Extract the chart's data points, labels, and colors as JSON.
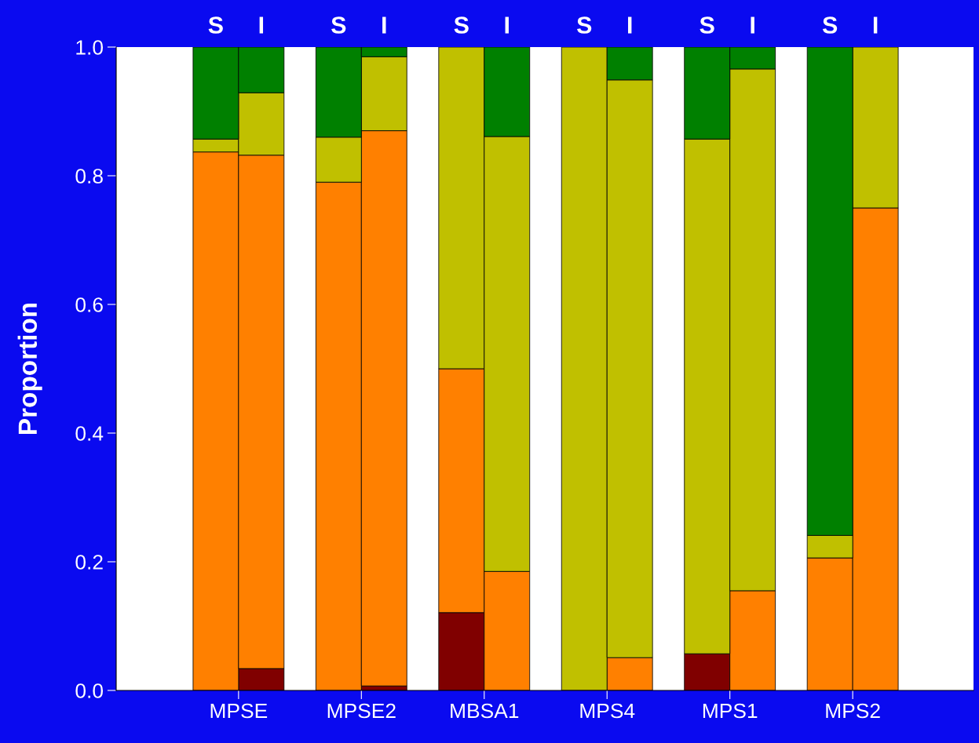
{
  "chart_data": {
    "type": "bar",
    "stacked": true,
    "ylabel": "Proportion",
    "categories": [
      "S",
      "I",
      "S",
      "I",
      "S",
      "I",
      "S",
      "I",
      "S",
      "I",
      "S",
      "I"
    ],
    "series": [
      {
        "color": "#800000",
        "values": [
          0,
          0.034,
          0,
          0.007,
          0.121,
          0,
          0,
          0,
          0.057,
          0,
          0,
          0
        ]
      },
      {
        "color": "#ff8000",
        "values": [
          0.837,
          0.798,
          0.79,
          0.863,
          0.379,
          0.185,
          0,
          0.051,
          0,
          0.155,
          0.206,
          0.75
        ]
      },
      {
        "color": "#c0c000",
        "values": [
          0.02,
          0.097,
          0.07,
          0.115,
          0.5,
          0.676,
          1.0,
          0.898,
          0.8,
          0.811,
          0.035,
          0.25
        ]
      },
      {
        "color": "#008000",
        "values": [
          0.143,
          0.071,
          0.14,
          0.015,
          0,
          0.139,
          0,
          0.051,
          0.143,
          0.034,
          0.759,
          0
        ]
      }
    ],
    "annotations": [
      "MPSE",
      "MPSE2",
      "MBSA1",
      "MPS4",
      "MPS1",
      "MPS2"
    ],
    "ylim": [
      0,
      1.0
    ],
    "yticks": [
      {
        "value": 0,
        "label": "0.0"
      },
      0.2,
      0.4,
      0.6,
      0.8,
      {
        "value": 1.0,
        "label": "1.0"
      }
    ],
    "grid": false,
    "legend": false
  }
}
